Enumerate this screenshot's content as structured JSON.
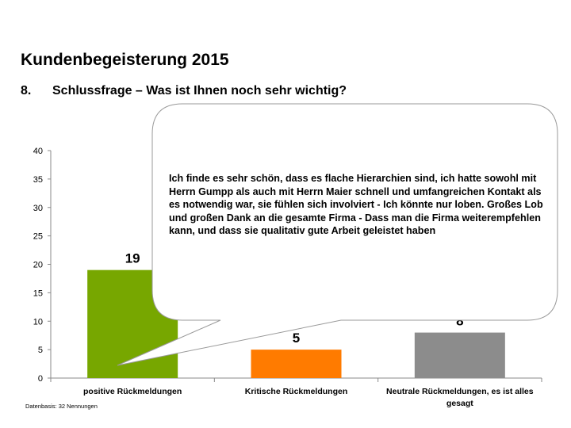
{
  "title": "Kundenbegeisterung 2015",
  "subtitle": {
    "number": "8.",
    "text": "Schlussfrage – Was ist Ihnen noch sehr wichtig?"
  },
  "footnote": "Datenbasis: 32 Nennungen",
  "callout": {
    "text": "Ich finde es sehr schön, dass es flache Hierarchien sind, ich hatte sowohl mit Herrn Gumpp als auch mit Herrn Maier schnell und umfangreichen Kontakt als es notwendig war, sie fühlen sich involviert - Ich könnte nur loben. Großes Lob und großen Dank an die gesamte Firma - Dass man die Firma weiterempfehlen kann, und dass sie qualitativ gute Arbeit geleistet haben"
  },
  "chart_data": {
    "type": "bar",
    "title": "",
    "xlabel": "",
    "ylabel": "",
    "ylim": [
      0,
      40
    ],
    "yticks": [
      0,
      5,
      10,
      15,
      20,
      25,
      30,
      35,
      40
    ],
    "categories": [
      [
        "positive Rückmeldungen"
      ],
      [
        "Kritische Rückmeldungen"
      ],
      [
        "Neutrale Rückmeldungen, es ist alles",
        "gesagt"
      ]
    ],
    "values": [
      19,
      5,
      8
    ],
    "data_labels": [
      "19",
      "5",
      "8"
    ],
    "colors": [
      "#77a700",
      "#ff7b00",
      "#8c8c8c"
    ]
  }
}
